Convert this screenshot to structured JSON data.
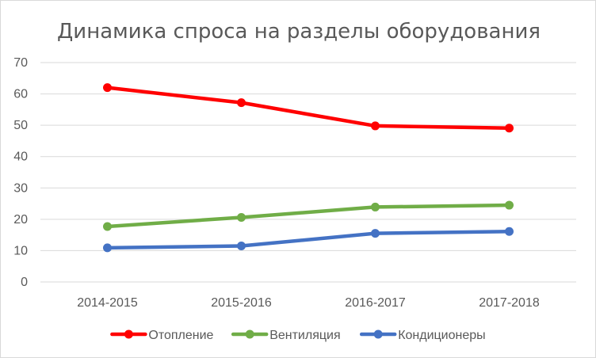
{
  "chart_data": {
    "type": "line",
    "title": "Динамика спроса на разделы оборудования",
    "xlabel": "",
    "ylabel": "",
    "categories": [
      "2014-2015",
      "2015-2016",
      "2016-2017",
      "2017-2018"
    ],
    "ylim": [
      0,
      70
    ],
    "yticks": [
      0,
      10,
      20,
      30,
      40,
      50,
      60,
      70
    ],
    "grid": true,
    "legend_position": "bottom",
    "series": [
      {
        "name": "Отопление",
        "color": "#ff0000",
        "values": [
          62,
          57.2,
          49.8,
          49.1
        ]
      },
      {
        "name": "Вентиляция",
        "color": "#70ad47",
        "values": [
          17.7,
          20.6,
          23.9,
          24.5
        ]
      },
      {
        "name": "Кондиционеры",
        "color": "#4472c4",
        "values": [
          10.9,
          11.5,
          15.5,
          16.1
        ]
      }
    ]
  }
}
